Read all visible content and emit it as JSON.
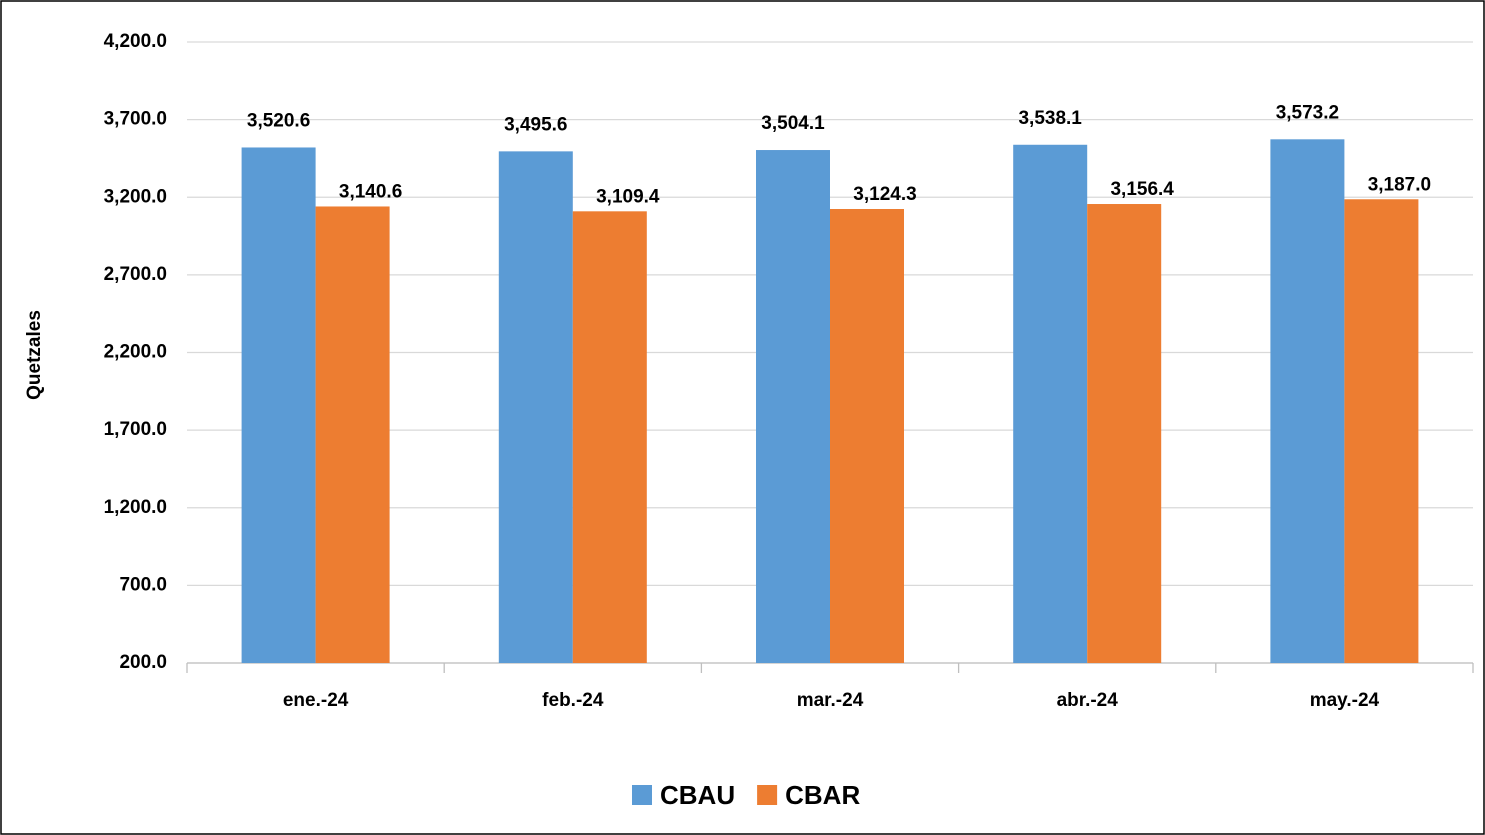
{
  "chart_data": {
    "type": "bar",
    "y_label": "Quetzales",
    "categories": [
      "ene.-24",
      "feb.-24",
      "mar.-24",
      "abr.-24",
      "may.-24"
    ],
    "series": [
      {
        "name": "CBAU",
        "color": "#5b9bd5",
        "values": [
          3520.6,
          3495.6,
          3504.1,
          3538.1,
          3573.2
        ],
        "value_labels": [
          "3,520.6",
          "3,495.6",
          "3,504.1",
          "3,538.1",
          "3,573.2"
        ]
      },
      {
        "name": "CBAR",
        "color": "#ed7d31",
        "values": [
          3140.6,
          3109.4,
          3124.3,
          3156.4,
          3187.0
        ],
        "value_labels": [
          "3,140.6",
          "3,109.4",
          "3,124.3",
          "3,156.4",
          "3,187.0"
        ]
      }
    ],
    "ylim": [
      200,
      4200
    ],
    "yticks": [
      {
        "value": 200,
        "label": "200.0"
      },
      {
        "value": 700,
        "label": "700.0"
      },
      {
        "value": 1200,
        "label": "1,200.0"
      },
      {
        "value": 1700,
        "label": "1,700.0"
      },
      {
        "value": 2200,
        "label": "2,200.0"
      },
      {
        "value": 2700,
        "label": "2,700.0"
      },
      {
        "value": 3200,
        "label": "3,200.0"
      },
      {
        "value": 3700,
        "label": "3,700.0"
      },
      {
        "value": 4200,
        "label": "4,200.0"
      }
    ],
    "grid": true,
    "legend": "bottom"
  }
}
